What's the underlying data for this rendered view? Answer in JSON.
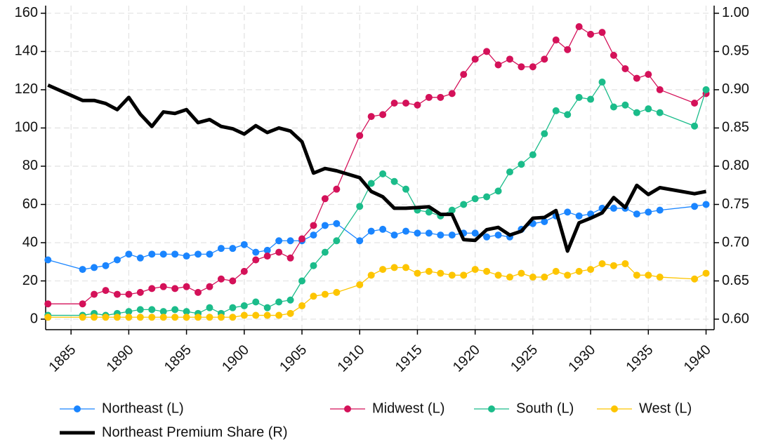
{
  "chart_data": {
    "type": "line",
    "x": [
      1883,
      1886,
      1887,
      1888,
      1889,
      1890,
      1891,
      1892,
      1893,
      1894,
      1895,
      1896,
      1897,
      1898,
      1899,
      1900,
      1901,
      1902,
      1903,
      1904,
      1905,
      1906,
      1907,
      1908,
      1910,
      1911,
      1912,
      1913,
      1914,
      1915,
      1916,
      1917,
      1918,
      1919,
      1920,
      1921,
      1922,
      1923,
      1924,
      1925,
      1926,
      1927,
      1928,
      1929,
      1930,
      1931,
      1932,
      1933,
      1934,
      1935,
      1936,
      1939,
      1940
    ],
    "series": [
      {
        "name": "Northeast (L)",
        "color": "#1a85ff",
        "markers": true,
        "values": [
          31,
          26,
          27,
          28,
          31,
          34,
          32,
          34,
          34,
          34,
          33,
          34,
          34,
          37,
          37,
          39,
          35,
          36,
          41,
          41,
          41,
          44,
          49,
          50,
          41,
          46,
          47,
          44,
          46,
          45,
          45,
          44,
          44,
          45,
          45,
          43,
          44,
          43,
          47,
          50,
          51,
          54,
          56,
          54,
          55,
          58,
          58,
          58,
          55,
          56,
          57,
          59,
          60
        ]
      },
      {
        "name": "Midwest (L)",
        "color": "#d41159",
        "markers": true,
        "values": [
          8,
          8,
          13,
          15,
          13,
          13,
          14,
          16,
          17,
          16,
          17,
          14,
          17,
          21,
          20,
          25,
          31,
          33,
          35,
          32,
          42,
          49,
          63,
          68,
          96,
          106,
          107,
          113,
          113,
          112,
          116,
          116,
          118,
          128,
          136,
          140,
          133,
          136,
          132,
          132,
          136,
          146,
          141,
          153,
          149,
          150,
          138,
          131,
          126,
          128,
          120,
          113,
          118
        ]
      },
      {
        "name": "South (L)",
        "color": "#1bbc8a",
        "markers": true,
        "values": [
          2,
          2,
          3,
          2,
          3,
          4,
          5,
          5,
          4,
          5,
          4,
          3,
          6,
          3,
          6,
          7,
          9,
          6,
          9,
          10,
          20,
          28,
          35,
          41,
          59,
          71,
          76,
          72,
          68,
          57,
          56,
          54,
          57,
          60,
          63,
          64,
          67,
          77,
          81,
          86,
          97,
          109,
          107,
          116,
          115,
          124,
          111,
          112,
          108,
          110,
          108,
          101,
          120
        ]
      },
      {
        "name": "West (L)",
        "color": "#fdc500",
        "markers": true,
        "values": [
          1,
          1,
          1,
          1,
          1,
          1,
          1,
          1,
          1,
          1,
          1,
          1,
          1,
          1,
          1,
          2,
          2,
          2,
          2,
          3,
          7,
          12,
          13,
          14,
          18,
          23,
          26,
          27,
          27,
          24,
          25,
          24,
          23,
          23,
          26,
          25,
          23,
          22,
          24,
          22,
          22,
          25,
          23,
          25,
          26,
          29,
          28,
          29,
          23,
          23,
          22,
          21,
          24
        ]
      },
      {
        "name": "Northeast Premium Share (R)",
        "color": "#000000",
        "axis": "y2",
        "markers": false,
        "values": [
          0.906,
          0.886,
          0.886,
          0.882,
          0.874,
          0.89,
          0.868,
          0.852,
          0.871,
          0.869,
          0.874,
          0.857,
          0.861,
          0.852,
          0.849,
          0.842,
          0.853,
          0.844,
          0.85,
          0.846,
          0.832,
          0.791,
          0.797,
          0.794,
          0.785,
          0.767,
          0.76,
          0.745,
          0.745,
          0.746,
          0.747,
          0.737,
          0.737,
          0.704,
          0.703,
          0.717,
          0.72,
          0.71,
          0.715,
          0.732,
          0.733,
          0.742,
          0.689,
          0.726,
          0.732,
          0.739,
          0.759,
          0.746,
          0.775,
          0.763,
          0.772,
          0.764,
          0.767
        ]
      }
    ],
    "xlim": [
      1882.8,
      1940.7
    ],
    "xticks": [
      1885,
      1890,
      1895,
      1900,
      1905,
      1910,
      1915,
      1920,
      1925,
      1930,
      1935,
      1940
    ],
    "ylim": [
      -5.5,
      164
    ],
    "yticks": [
      0,
      20,
      40,
      60,
      80,
      100,
      120,
      140,
      160
    ],
    "y2lim": [
      0.58625,
      1.01
    ],
    "y2ticks": [
      {
        "value": 0.6,
        "label": "0.60"
      },
      {
        "value": 0.65,
        "label": "0.65"
      },
      {
        "value": 0.7,
        "label": "0.70"
      },
      {
        "value": 0.75,
        "label": "0.75"
      },
      {
        "value": 0.8,
        "label": "0.80"
      },
      {
        "value": 0.85,
        "label": "0.85"
      },
      {
        "value": 0.9,
        "label": "0.90"
      },
      {
        "value": 0.95,
        "label": "0.95"
      },
      {
        "value": 1.0,
        "label": "1.00"
      }
    ],
    "grid": true
  }
}
